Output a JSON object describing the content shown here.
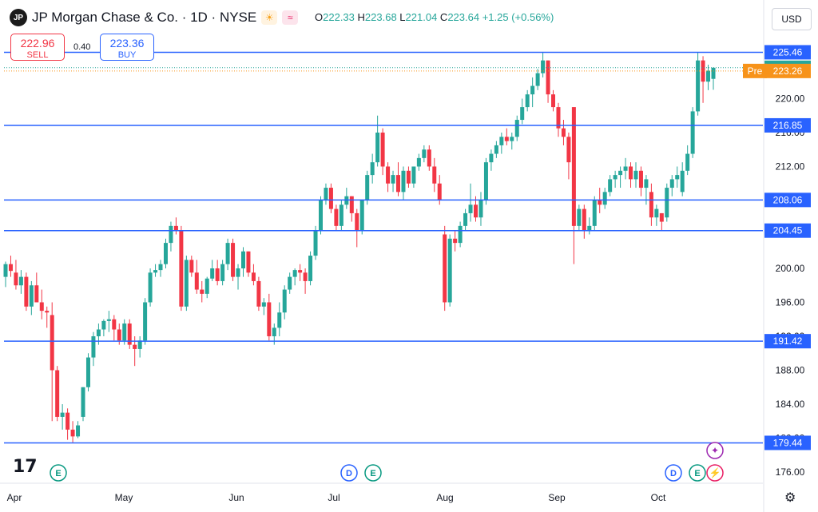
{
  "header": {
    "logo_text": "JP",
    "title": "JP Morgan Chase & Co. · 1D · NYSE",
    "ohlc": {
      "o_label": "O",
      "o": "222.33",
      "h_label": "H",
      "h": "223.68",
      "l_label": "L",
      "l": "221.04",
      "c_label": "C",
      "c": "223.64",
      "change": "+1.25 (+0.56%)"
    },
    "currency": "USD"
  },
  "trade": {
    "sell_price": "222.96",
    "sell_label": "SELL",
    "buy_price": "223.36",
    "buy_label": "BUY",
    "spread": "0.40"
  },
  "colors": {
    "up": "#26a69a",
    "down": "#f23645",
    "level": "#2962ff",
    "pre": "#f7931a",
    "event_e": "#089981",
    "event_d": "#2962ff",
    "event_star": "#9c27b0"
  },
  "chart_data": {
    "type": "candlestick",
    "ylim": [
      174.5,
      228.5
    ],
    "y_ticks": [
      176,
      180,
      184,
      188,
      192,
      196,
      200,
      204,
      208,
      212,
      216,
      220
    ],
    "x_ticks": [
      "Apr",
      "May",
      "Jun",
      "Jul",
      "Aug",
      "Sep",
      "Oct"
    ],
    "horizontal_levels": [
      225.46,
      216.85,
      208.06,
      204.45,
      191.42,
      179.44
    ],
    "last_price": 223.64,
    "pre_market": {
      "label": "Pre",
      "price": 223.26
    },
    "events": [
      {
        "type": "E",
        "date": "Apr"
      },
      {
        "type": "D",
        "date": "Jul"
      },
      {
        "type": "E",
        "date": "Jul"
      },
      {
        "type": "D",
        "date": "Oct"
      },
      {
        "type": "E",
        "date": "Oct"
      },
      {
        "type": "star",
        "date": "Oct"
      },
      {
        "type": "bolt",
        "date": "Oct"
      }
    ],
    "candles": [
      [
        199,
        200.8,
        197.8,
        200.5
      ],
      [
        200.5,
        201.5,
        199,
        199.7
      ],
      [
        199.5,
        201,
        197.5,
        198
      ],
      [
        198,
        199.8,
        197,
        199
      ],
      [
        199,
        199.5,
        195,
        195.5
      ],
      [
        195.5,
        198.5,
        194.5,
        198
      ],
      [
        198,
        199.5,
        196,
        196
      ],
      [
        196,
        197.5,
        194,
        195
      ],
      [
        195,
        195.5,
        193,
        194.8
      ],
      [
        194.5,
        196,
        182,
        188
      ],
      [
        188,
        188.5,
        182,
        182.5
      ],
      [
        182.5,
        184,
        181,
        183
      ],
      [
        183,
        183.5,
        179.8,
        181
      ],
      [
        181,
        182,
        179.5,
        180.2
      ],
      [
        180.2,
        182,
        180,
        181.5
      ],
      [
        182.5,
        186,
        182,
        186
      ],
      [
        186,
        190,
        185.5,
        189.5
      ],
      [
        189.5,
        192.5,
        188.5,
        192
      ],
      [
        192,
        193.5,
        191,
        192.8
      ],
      [
        192.8,
        194,
        192,
        193.8
      ],
      [
        193.8,
        195,
        192.5,
        194
      ],
      [
        194,
        194.5,
        191.5,
        192.8
      ],
      [
        192.8,
        193.5,
        191,
        191.5
      ],
      [
        191.5,
        194,
        191,
        193.5
      ],
      [
        193.5,
        194,
        190.5,
        191
      ],
      [
        191,
        192,
        188.5,
        190.5
      ],
      [
        190.5,
        192,
        189.5,
        191.5
      ],
      [
        191.5,
        196.5,
        191,
        196
      ],
      [
        196,
        200,
        195.5,
        199.5
      ],
      [
        199.5,
        200.5,
        199,
        199.8
      ],
      [
        199.8,
        201,
        199,
        200.5
      ],
      [
        200.5,
        203.5,
        200,
        203
      ],
      [
        203,
        205.5,
        202,
        205
      ],
      [
        205,
        206,
        204,
        204.5
      ],
      [
        204.5,
        205,
        195,
        195.5
      ],
      [
        195.5,
        201.5,
        195,
        201
      ],
      [
        201,
        201.5,
        199,
        199.5
      ],
      [
        199.5,
        201,
        197,
        197.5
      ],
      [
        197.5,
        198.5,
        196,
        197
      ],
      [
        197,
        199,
        196.5,
        198.8
      ],
      [
        198.8,
        201,
        198.5,
        200
      ],
      [
        200,
        201,
        198,
        198.5
      ],
      [
        198.5,
        201,
        198,
        200.5
      ],
      [
        200.5,
        203.5,
        199.8,
        203
      ],
      [
        203,
        203.5,
        198.5,
        199
      ],
      [
        199,
        200.5,
        197.5,
        200
      ],
      [
        200,
        202.5,
        199,
        202
      ],
      [
        202,
        202,
        199,
        199.5
      ],
      [
        199.5,
        200.5,
        198,
        198.5
      ],
      [
        198.5,
        199,
        195,
        195.5
      ],
      [
        195.5,
        196.5,
        194.5,
        196
      ],
      [
        196,
        197,
        191.5,
        192
      ],
      [
        192,
        193.5,
        191,
        193
      ],
      [
        193,
        196,
        192,
        194.8
      ],
      [
        194.8,
        198,
        194,
        197.5
      ],
      [
        197.5,
        199.5,
        197,
        199
      ],
      [
        199,
        200,
        198,
        199.8
      ],
      [
        199.8,
        200.5,
        198.5,
        199.5
      ],
      [
        199.5,
        200,
        197,
        198.5
      ],
      [
        198.5,
        202,
        198,
        201.5
      ],
      [
        201.5,
        205,
        201,
        204.5
      ],
      [
        204.5,
        208.5,
        204,
        208
      ],
      [
        208,
        210,
        207.5,
        209.5
      ],
      [
        209.5,
        210,
        206.5,
        207
      ],
      [
        207,
        207.5,
        204.5,
        205
      ],
      [
        205,
        208,
        204.5,
        207.5
      ],
      [
        207.5,
        209.5,
        207,
        208.5
      ],
      [
        208.5,
        208.5,
        205.5,
        206.5
      ],
      [
        206.5,
        207,
        202.5,
        204.5
      ],
      [
        204.5,
        208,
        204,
        208
      ],
      [
        208,
        211.5,
        207.5,
        211
      ],
      [
        211,
        213.5,
        210,
        212.5
      ],
      [
        212.5,
        218,
        212,
        216
      ],
      [
        216,
        216.5,
        211,
        212
      ],
      [
        212,
        212.5,
        209,
        210
      ],
      [
        210,
        211.5,
        209,
        211
      ],
      [
        211,
        212.5,
        208.5,
        209
      ],
      [
        209,
        212,
        208,
        211.5
      ],
      [
        211.5,
        212,
        209.5,
        210
      ],
      [
        210,
        212,
        209.5,
        212
      ],
      [
        212,
        213.5,
        211.5,
        213
      ],
      [
        213,
        214.5,
        212.5,
        214
      ],
      [
        214,
        214.5,
        211.5,
        212
      ],
      [
        212,
        213,
        209,
        210
      ],
      [
        210,
        211,
        207.5,
        208
      ],
      [
        204,
        205,
        195,
        196
      ],
      [
        196,
        204,
        195.5,
        203.5
      ],
      [
        203.5,
        204.5,
        202,
        203
      ],
      [
        203,
        205.5,
        202.5,
        205
      ],
      [
        205,
        207,
        204.5,
        206.5
      ],
      [
        206.5,
        210,
        205.5,
        207.5
      ],
      [
        207.5,
        208.5,
        205.5,
        206
      ],
      [
        206,
        209,
        205,
        208
      ],
      [
        208,
        213,
        207.5,
        212.5
      ],
      [
        212.5,
        214,
        211.5,
        213.5
      ],
      [
        213.5,
        215,
        213,
        214.5
      ],
      [
        214.5,
        216,
        213.5,
        215.5
      ],
      [
        215.5,
        216.5,
        214.5,
        215
      ],
      [
        215,
        216,
        214,
        215.5
      ],
      [
        215.5,
        218,
        215,
        217.5
      ],
      [
        217.5,
        220,
        217,
        219
      ],
      [
        219,
        221,
        218.5,
        220.5
      ],
      [
        220.5,
        222.5,
        219,
        221.5
      ],
      [
        221.5,
        223.5,
        221,
        223
      ],
      [
        223,
        225.5,
        222.5,
        224.5
      ],
      [
        224.5,
        224.5,
        219.5,
        220.5
      ],
      [
        220.5,
        221,
        218.5,
        219
      ],
      [
        219,
        219.5,
        215.5,
        216.5
      ],
      [
        216.5,
        217.5,
        214.5,
        215.5
      ],
      [
        215.5,
        216,
        210.5,
        212.5
      ],
      [
        219,
        219,
        200.5,
        205
      ],
      [
        205,
        207.5,
        204.5,
        207
      ],
      [
        207,
        207.5,
        203.5,
        204.5
      ],
      [
        204.5,
        206,
        204,
        205
      ],
      [
        205,
        208.5,
        204.5,
        208
      ],
      [
        208,
        209.5,
        206.5,
        207.5
      ],
      [
        207.5,
        209.5,
        207,
        209
      ],
      [
        209,
        211,
        208.5,
        210.5
      ],
      [
        210.5,
        211.5,
        209.5,
        211
      ],
      [
        211,
        212,
        209.5,
        211.5
      ],
      [
        211.5,
        213,
        210.5,
        212
      ],
      [
        212,
        212.5,
        209.5,
        210.5
      ],
      [
        210.5,
        212.5,
        209.5,
        211.5
      ],
      [
        211.5,
        212,
        208.5,
        209.5
      ],
      [
        209.5,
        211,
        207.5,
        210.5
      ],
      [
        209,
        210,
        205,
        206
      ],
      [
        206,
        207.5,
        205,
        207
      ],
      [
        206.5,
        206.5,
        204.5,
        205.5
      ],
      [
        206,
        210,
        205.5,
        209.5
      ],
      [
        209.5,
        211,
        208.5,
        210.5
      ],
      [
        210.5,
        212,
        209.5,
        211
      ],
      [
        209,
        212.5,
        208.5,
        211.5
      ],
      [
        211.5,
        214.5,
        211,
        213.5
      ],
      [
        213.5,
        219,
        213,
        218.5
      ],
      [
        218.5,
        225.5,
        218,
        224.5
      ],
      [
        224.5,
        225,
        219.5,
        222
      ],
      [
        222,
        224,
        221,
        223.3
      ],
      [
        222.33,
        223.68,
        221.04,
        223.64
      ]
    ]
  }
}
